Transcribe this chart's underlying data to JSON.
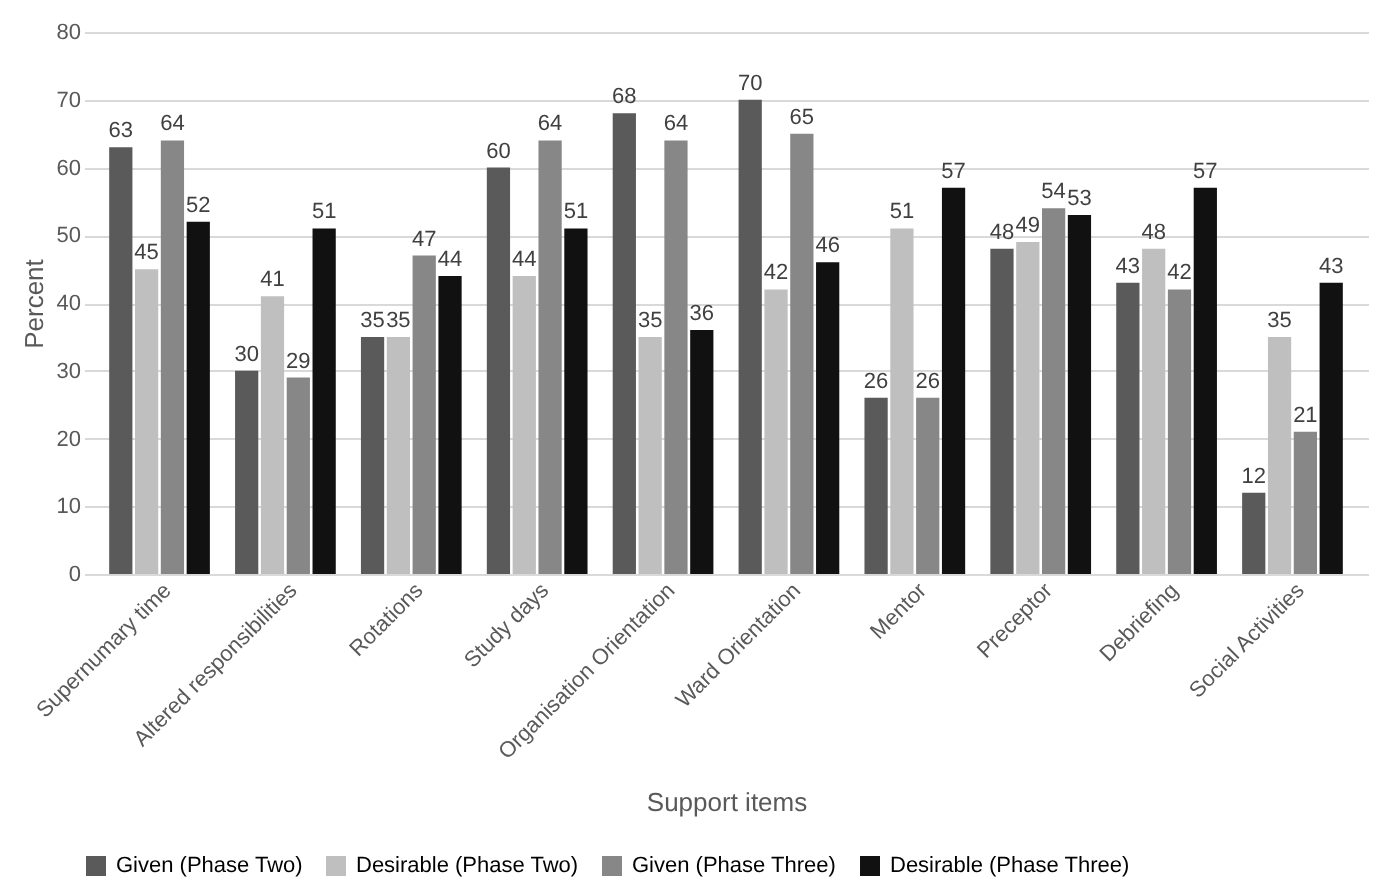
{
  "chart_data": {
    "type": "bar",
    "xlabel": "Support items",
    "ylabel": "Percent",
    "categories": [
      "Supernumary time",
      "Altered responsibilities",
      "Rotations",
      "Study days",
      "Organisation Orientation",
      "Ward Orientation",
      "Mentor",
      "Preceptor",
      "Debriefing",
      "Social Activities"
    ],
    "series": [
      {
        "name": "Given (Phase Two)",
        "color": "#5a5a5a",
        "values": [
          63,
          30,
          35,
          60,
          68,
          70,
          26,
          48,
          43,
          12
        ]
      },
      {
        "name": "Desirable (Phase Two)",
        "color": "#bfbfbf",
        "values": [
          45,
          41,
          35,
          44,
          35,
          42,
          51,
          49,
          48,
          35
        ]
      },
      {
        "name": "Given (Phase Three)",
        "color": "#878787",
        "values": [
          64,
          29,
          47,
          64,
          64,
          65,
          26,
          54,
          42,
          21
        ]
      },
      {
        "name": "Desirable (Phase Three)",
        "color": "#111111",
        "values": [
          52,
          51,
          44,
          51,
          36,
          46,
          57,
          53,
          57,
          43
        ]
      }
    ],
    "ylim": [
      0,
      80
    ],
    "yticks": [
      0,
      10,
      20,
      30,
      40,
      50,
      60,
      70,
      80
    ],
    "grid": "y",
    "legend": "bottom",
    "data_labels": true
  }
}
